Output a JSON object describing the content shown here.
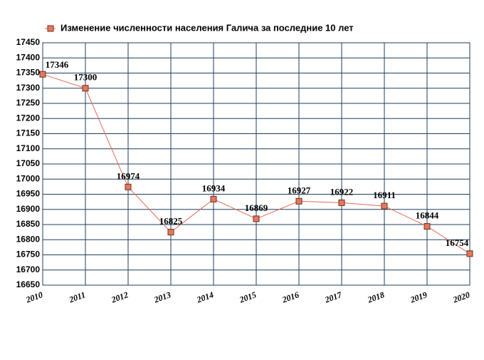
{
  "chart_data": {
    "type": "line",
    "legend_label": "Изменение численности населения Галича за последние 10 лет",
    "x": [
      2010,
      2011,
      2012,
      2013,
      2014,
      2015,
      2016,
      2017,
      2018,
      2019,
      2020
    ],
    "series": [
      {
        "name": "Изменение численности населения Галича за последние 10 лет",
        "color": "#e06a5a",
        "values": [
          17346,
          17300,
          16974,
          16825,
          16934,
          16869,
          16927,
          16922,
          16911,
          16844,
          16754
        ]
      }
    ],
    "xlim": [
      2010,
      2020
    ],
    "xticks": [
      2010,
      2011,
      2012,
      2013,
      2014,
      2015,
      2016,
      2017,
      2018,
      2019,
      2020
    ],
    "ylim": [
      16650,
      17450
    ],
    "yticks": [
      16650,
      16700,
      16750,
      16800,
      16850,
      16900,
      16950,
      17000,
      17050,
      17100,
      17150,
      17200,
      17250,
      17300,
      17350,
      17400,
      17450
    ],
    "grid": true
  }
}
